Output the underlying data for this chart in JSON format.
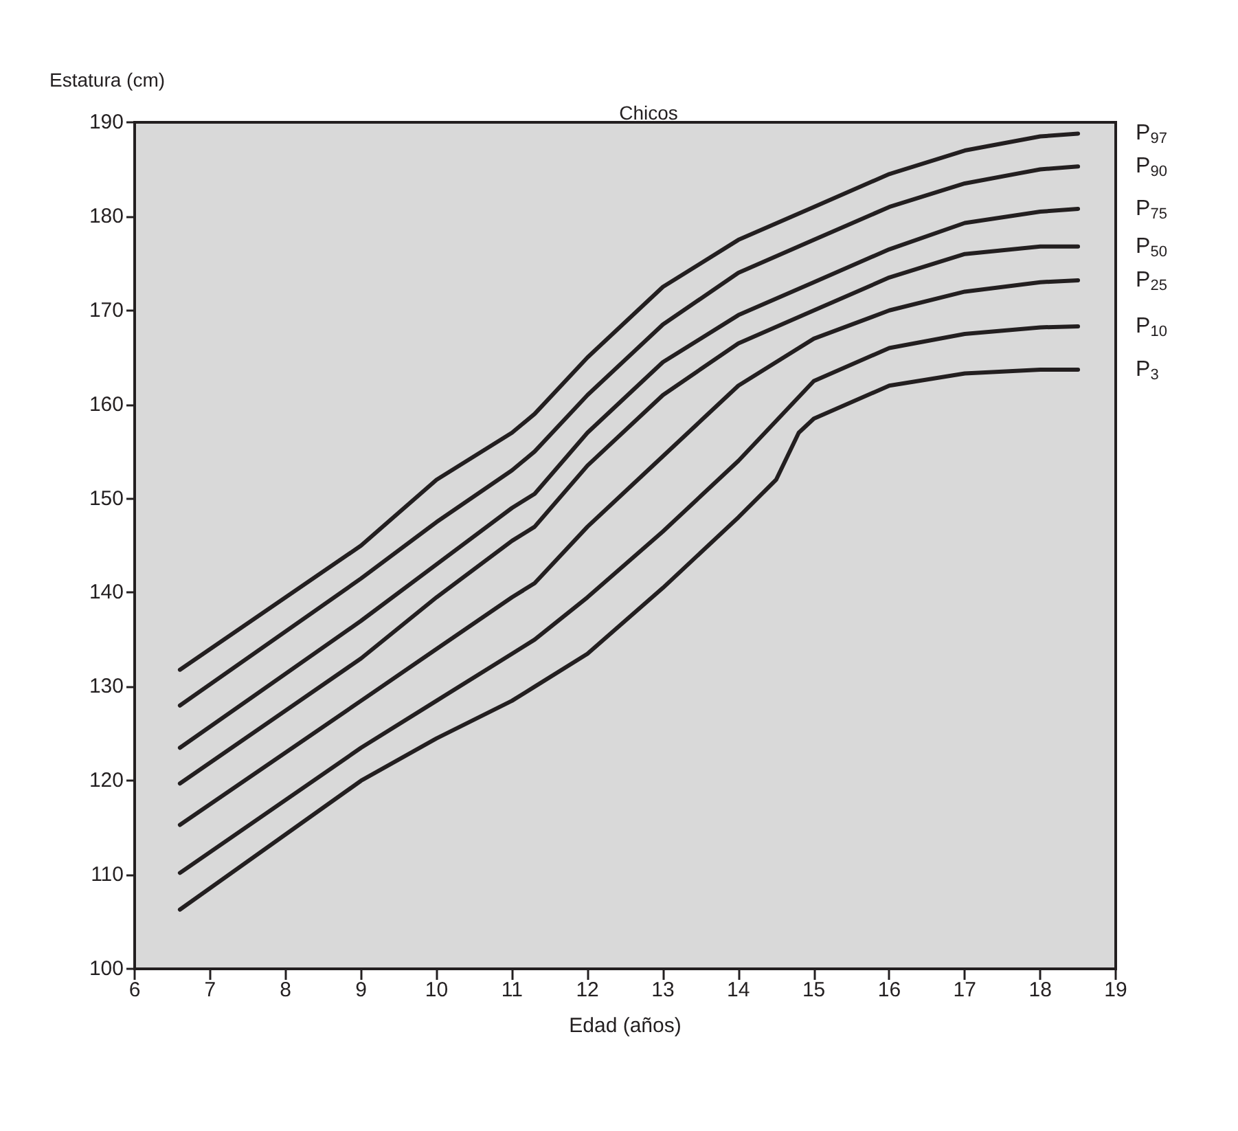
{
  "chart_data": {
    "type": "line",
    "title": "Chicos",
    "xlabel": "Edad (años)",
    "ylabel": "Estatura (cm)",
    "xlim": [
      6,
      19
    ],
    "xticks": [
      6,
      7,
      8,
      9,
      10,
      11,
      12,
      13,
      14,
      15,
      16,
      17,
      18,
      19
    ],
    "ylim": [
      100,
      190
    ],
    "yticks": [
      100,
      110,
      120,
      130,
      140,
      150,
      160,
      170,
      180,
      190
    ],
    "grid": false,
    "legend": false,
    "marker": "none",
    "line_style": "solid",
    "x": [
      6.6,
      9,
      10,
      11,
      11.3,
      12,
      13,
      14,
      15,
      16,
      17,
      18,
      18.5
    ],
    "series": [
      {
        "name": "P$_{97}$",
        "color": "#231f20",
        "values": [
          131.8,
          145,
          152,
          157,
          159,
          165,
          172.5,
          177.5,
          181,
          184.5,
          187,
          188.5,
          188.8
        ]
      },
      {
        "name": "P$_{90}$",
        "color": "#231f20",
        "values": [
          128,
          141.5,
          147.5,
          153,
          155,
          161,
          168.5,
          174,
          177.5,
          181,
          183.5,
          185,
          185.3
        ]
      },
      {
        "name": "P$_{75}$",
        "color": "#231f20",
        "values": [
          123.5,
          137,
          143,
          149,
          150.5,
          157,
          164.5,
          169.5,
          173,
          176.5,
          179.3,
          180.5,
          180.8
        ]
      },
      {
        "name": "P$_{50}$",
        "color": "#231f20",
        "values": [
          119.7,
          133,
          139.5,
          145.5,
          147,
          153.5,
          161,
          166.5,
          170,
          173.5,
          176,
          176.8,
          176.8
        ]
      },
      {
        "name": "P$_{25}$",
        "color": "#231f20",
        "values": [
          115.3,
          128.5,
          134,
          139.5,
          141,
          147,
          154.5,
          162,
          167,
          170,
          172,
          173,
          173.2
        ]
      },
      {
        "name": "P$_{10}$",
        "color": "#231f20",
        "values": [
          110.2,
          123.5,
          128.5,
          133.5,
          135,
          139.5,
          146.5,
          154,
          162.5,
          166,
          167.5,
          168.2,
          168.3
        ]
      },
      {
        "name": "P$_{3}$",
        "color": "#231f20",
        "x": [
          6.6,
          9,
          10,
          11,
          11.3,
          12,
          13,
          14,
          14.5,
          14.8,
          15,
          16,
          17,
          18,
          18.5
        ],
        "values": [
          106.3,
          120,
          124.5,
          128.5,
          130,
          133.5,
          140.5,
          148,
          152,
          157,
          158.5,
          162,
          163.3,
          163.7,
          163.7
        ]
      }
    ]
  }
}
